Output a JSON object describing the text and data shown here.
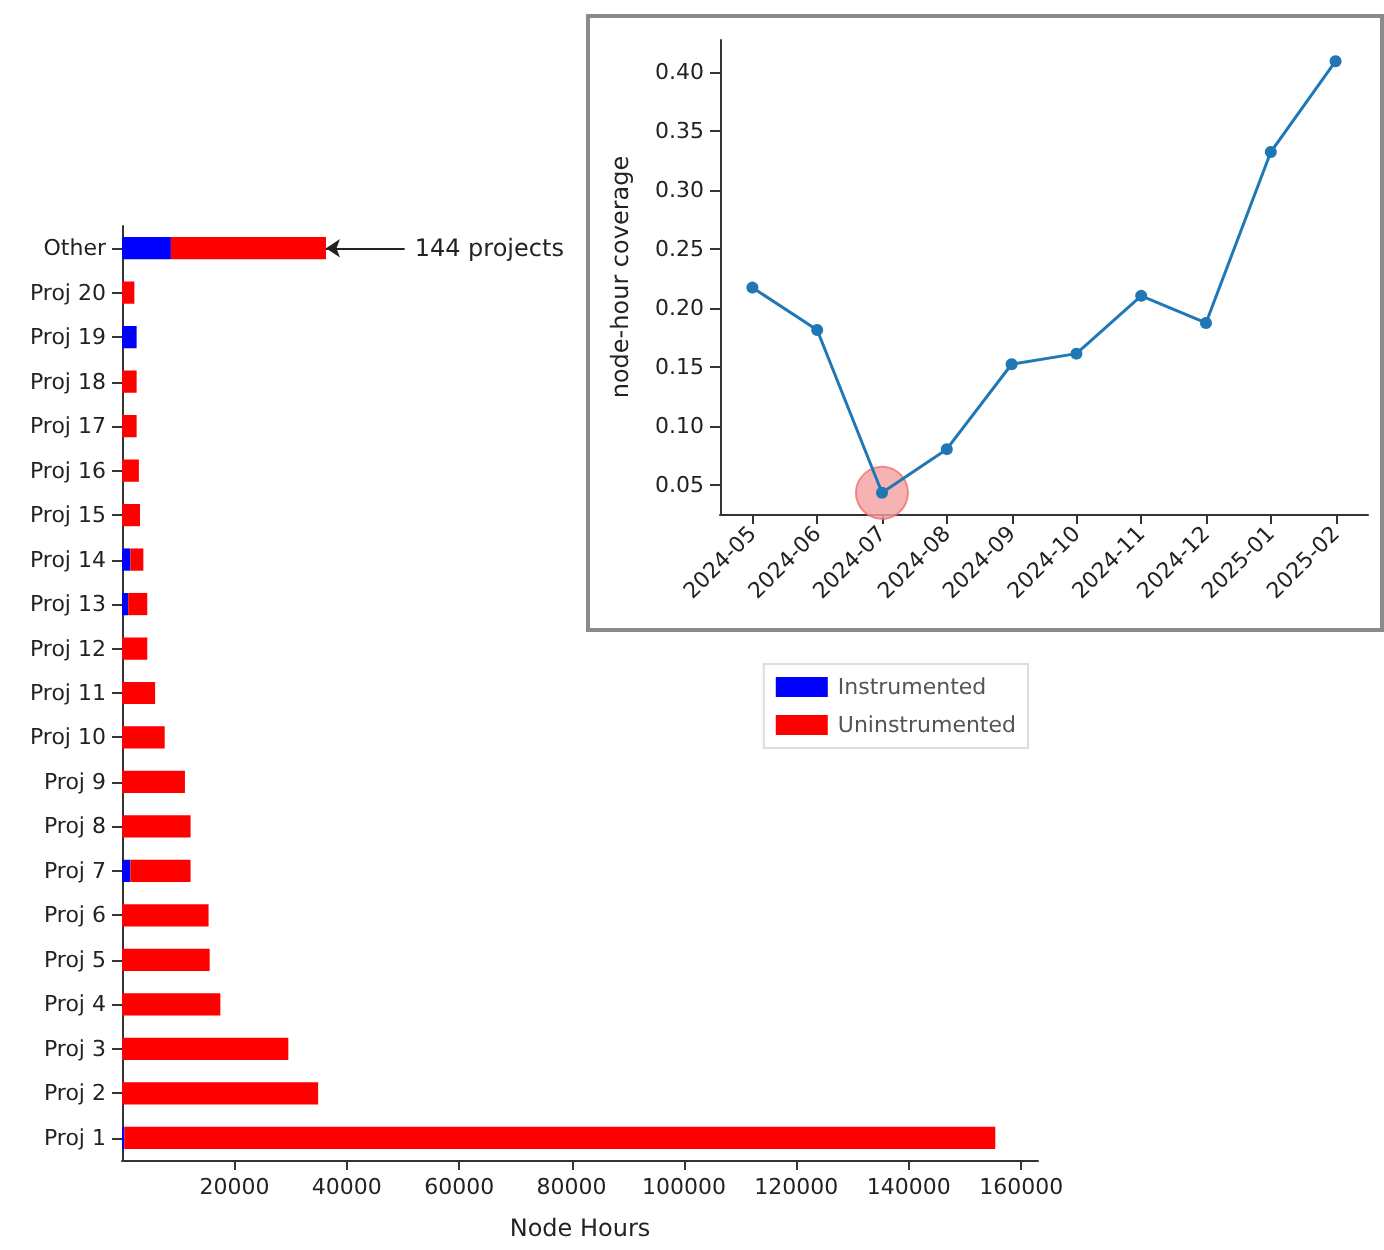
{
  "chart_data": [
    {
      "type": "bar",
      "orientation": "horizontal",
      "stacked": true,
      "categories": [
        "Other",
        "Proj 20",
        "Proj 19",
        "Proj 18",
        "Proj 17",
        "Proj 16",
        "Proj 15",
        "Proj 14",
        "Proj 13",
        "Proj 12",
        "Proj 11",
        "Proj 10",
        "Proj 9",
        "Proj 8",
        "Proj 7",
        "Proj 6",
        "Proj 5",
        "Proj 4",
        "Proj 3",
        "Proj 2",
        "Proj 1"
      ],
      "series": [
        {
          "name": "Instrumented",
          "color": "#0000ff",
          "values": [
            8700,
            0,
            2600,
            0,
            0,
            0,
            0,
            1500,
            1100,
            0,
            0,
            0,
            0,
            0,
            1500,
            0,
            0,
            0,
            0,
            0,
            400
          ]
        },
        {
          "name": "Uninstrumented",
          "color": "#ff0000",
          "values": [
            27600,
            2200,
            0,
            2600,
            2600,
            3000,
            3200,
            2300,
            3400,
            4500,
            5900,
            7600,
            11200,
            12200,
            10700,
            15400,
            15600,
            17500,
            29600,
            34900,
            155000
          ]
        }
      ],
      "xlabel": "Node Hours",
      "xlim": [
        0,
        163000
      ],
      "xticks": [
        20000,
        40000,
        60000,
        80000,
        100000,
        120000,
        140000,
        160000
      ],
      "annotations": [
        {
          "text": "144 projects",
          "x": 36300,
          "y": "Other"
        }
      ],
      "legend": "right",
      "grid": false
    },
    {
      "type": "line",
      "categories": [
        "2024-05",
        "2024-06",
        "2024-07",
        "2024-08",
        "2024-09",
        "2024-10",
        "2024-11",
        "2024-12",
        "2025-01",
        "2025-02"
      ],
      "series": [
        {
          "color": "#1f77b4",
          "values": [
            0.217,
            0.181,
            0.043,
            0.08,
            0.152,
            0.161,
            0.21,
            0.187,
            0.332,
            0.409
          ]
        },
        {
          "type": "scatter",
          "color": "#f4a0a0",
          "values": [
            null,
            null,
            0.043,
            null,
            null,
            null,
            null,
            null,
            null,
            null
          ]
        }
      ],
      "ylabel": "node-hour coverage",
      "ylim": [
        0.025,
        0.427
      ],
      "yticks": [
        0.05,
        {
          "value": 0.1,
          "label": "0.10"
        },
        0.15,
        {
          "value": 0.2,
          "label": "0.20"
        },
        0.25,
        {
          "value": 0.3,
          "label": "0.30"
        },
        0.35,
        {
          "value": 0.4,
          "label": "0.40"
        }
      ],
      "marker": "circle",
      "line_style": "solid",
      "grid": false
    }
  ]
}
